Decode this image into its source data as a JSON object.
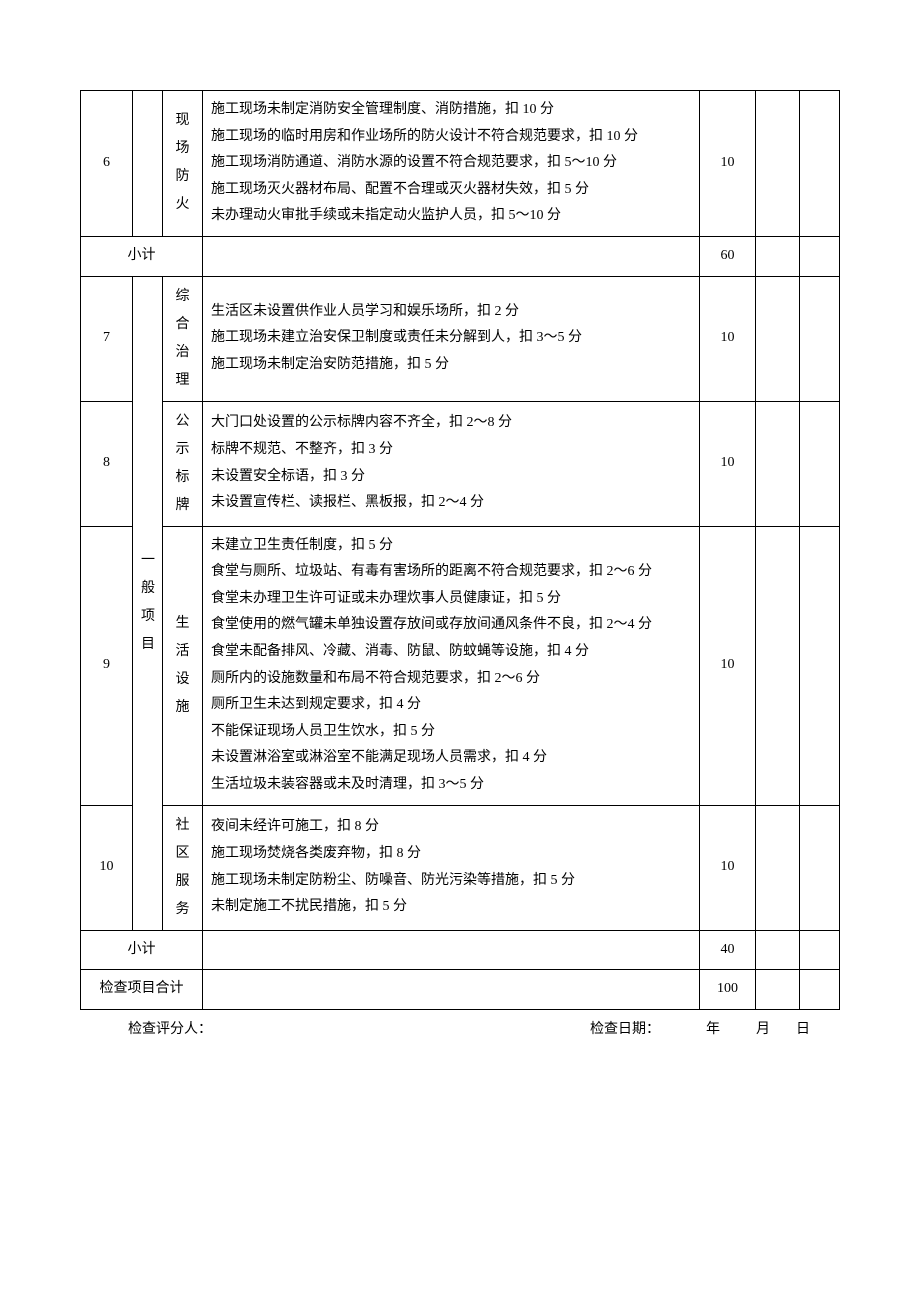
{
  "table": {
    "border_color": "#000000",
    "background_color": "#ffffff",
    "font_family": "SimSun",
    "font_size": 14,
    "category_general": "一\n般\n项\n目",
    "rows": [
      {
        "num": "6",
        "item": "现场\n防火",
        "desc": "施工现场未制定消防安全管理制度、消防措施，扣 10 分\n施工现场的临时用房和作业场所的防火设计不符合规范要求，扣 10 分\n施工现场消防通道、消防水源的设置不符合规范要求，扣 5～10 分\n施工现场灭火器材布局、配置不合理或灭火器材失效，扣 5 分\n未办理动火审批手续或未指定动火监护人员，扣 5～10 分",
        "score": "10"
      }
    ],
    "subtotal1": {
      "label": "小计",
      "score": "60"
    },
    "rows2": [
      {
        "num": "7",
        "item": "综合\n治理",
        "desc": "生活区未设置供作业人员学习和娱乐场所，扣 2 分\n施工现场未建立治安保卫制度或责任未分解到人，扣 3～5 分\n施工现场未制定治安防范措施，扣 5 分",
        "score": "10"
      },
      {
        "num": "8",
        "item": "公示\n标牌",
        "desc": "大门口处设置的公示标牌内容不齐全，扣 2～8 分\n标牌不规范、不整齐，扣 3 分\n未设置安全标语，扣 3 分\n未设置宣传栏、读报栏、黑板报，扣 2～4 分",
        "score": "10"
      },
      {
        "num": "9",
        "item": "生活\n设施",
        "desc": "未建立卫生责任制度，扣 5 分\n食堂与厕所、垃圾站、有毒有害场所的距离不符合规范要求，扣 2～6 分\n食堂未办理卫生许可证或未办理炊事人员健康证，扣 5 分\n食堂使用的燃气罐未单独设置存放间或存放间通风条件不良，扣 2～4 分\n食堂未配备排风、冷藏、消毒、防鼠、防蚊蝇等设施，扣 4 分\n厕所内的设施数量和布局不符合规范要求，扣 2～6 分\n厕所卫生未达到规定要求，扣 4 分\n不能保证现场人员卫生饮水，扣 5 分\n未设置淋浴室或淋浴室不能满足现场人员需求，扣 4 分\n生活垃圾未装容器或未及时清理，扣 3～5 分",
        "score": "10"
      },
      {
        "num": "10",
        "item": "社区\n服务",
        "desc": "夜间未经许可施工，扣 8 分\n施工现场焚烧各类废弃物，扣 8 分\n施工现场未制定防粉尘、防噪音、防光污染等措施，扣 5 分\n未制定施工不扰民措施，扣 5 分",
        "score": "10"
      }
    ],
    "subtotal2": {
      "label": "小计",
      "score": "40"
    },
    "total": {
      "label": "检查项目合计",
      "score": "100"
    }
  },
  "footer": {
    "scorer_label": "检查评分人：",
    "date_label": "检查日期：",
    "year": "年",
    "month": "月",
    "day": "日"
  }
}
